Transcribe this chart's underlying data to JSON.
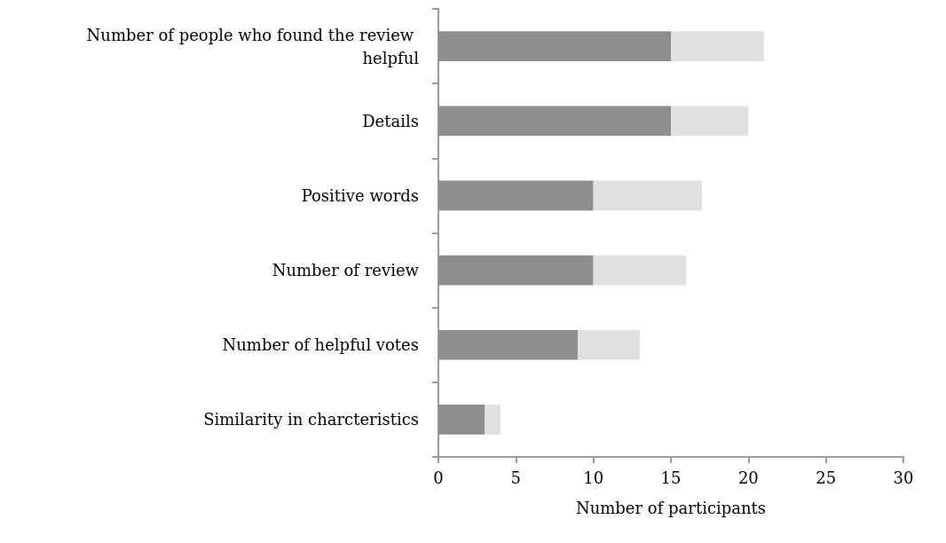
{
  "chart_data": {
    "type": "bar",
    "orientation": "horizontal",
    "stacked": true,
    "xlabel": "Number of participants",
    "categories": [
      "Number of people who found the review helpful",
      "Details",
      "Positive words",
      "Number of review",
      "Number of helpful votes",
      "Similarity in charcteristics"
    ],
    "series": [
      {
        "color": "#8f8f8f",
        "values": [
          15,
          15,
          10,
          10,
          9,
          3
        ]
      },
      {
        "color": "#e0e0e0",
        "values": [
          6,
          5,
          7,
          6,
          4,
          1
        ]
      }
    ],
    "xlim": [
      0,
      30
    ],
    "xticks": [
      0,
      5,
      10,
      15,
      20,
      25,
      30
    ]
  }
}
